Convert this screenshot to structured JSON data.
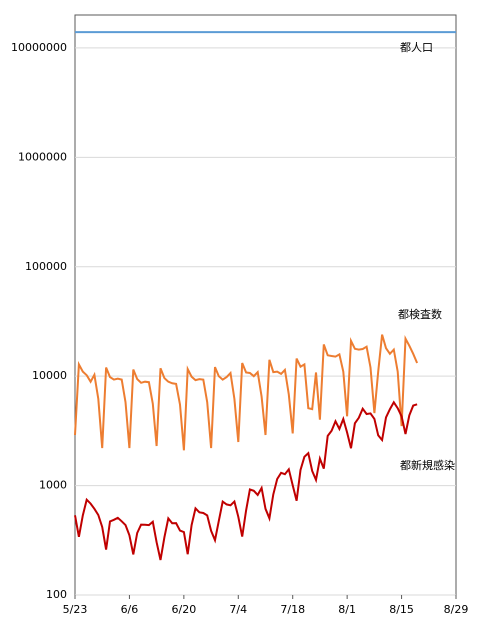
{
  "chart_data": {
    "type": "line",
    "log_y": true,
    "grid": true,
    "x": [
      "5/23",
      "5/24",
      "5/25",
      "5/26",
      "5/27",
      "5/28",
      "5/29",
      "5/30",
      "5/31",
      "6/1",
      "6/2",
      "6/3",
      "6/4",
      "6/5",
      "6/6",
      "6/7",
      "6/8",
      "6/9",
      "6/10",
      "6/11",
      "6/12",
      "6/13",
      "6/14",
      "6/15",
      "6/16",
      "6/17",
      "6/18",
      "6/19",
      "6/20",
      "6/21",
      "6/22",
      "6/23",
      "6/24",
      "6/25",
      "6/26",
      "6/27",
      "6/28",
      "6/29",
      "6/30",
      "7/1",
      "7/2",
      "7/3",
      "7/4",
      "7/5",
      "7/6",
      "7/7",
      "7/8",
      "7/9",
      "7/10",
      "7/11",
      "7/12",
      "7/13",
      "7/14",
      "7/15",
      "7/16",
      "7/17",
      "7/18",
      "7/19",
      "7/20",
      "7/21",
      "7/22",
      "7/23",
      "7/24",
      "7/25",
      "7/26",
      "7/27",
      "7/28",
      "7/29",
      "7/30",
      "7/31",
      "8/1",
      "8/2",
      "8/3",
      "8/4",
      "8/5",
      "8/6",
      "8/7",
      "8/8",
      "8/9",
      "8/10",
      "8/11",
      "8/12",
      "8/13",
      "8/14",
      "8/15",
      "8/16",
      "8/17",
      "8/18",
      "8/19"
    ],
    "series": [
      {
        "name": "都検査数",
        "color": "#ed7d31",
        "values": [
          2900,
          12800,
          11000,
          10200,
          8900,
          10300,
          6200,
          2200,
          12000,
          9800,
          9300,
          9500,
          9300,
          5800,
          2200,
          11500,
          9400,
          8700,
          8900,
          8800,
          5600,
          2300,
          11800,
          9600,
          8900,
          8600,
          8500,
          5500,
          2100,
          11600,
          9900,
          9200,
          9400,
          9300,
          5800,
          2200,
          12100,
          10000,
          9300,
          9800,
          10700,
          6200,
          2500,
          13200,
          10800,
          10700,
          10000,
          10900,
          6500,
          2900,
          14100,
          10900,
          11000,
          10500,
          11400,
          6800,
          3000,
          14500,
          12200,
          12800,
          5100,
          5000,
          10800,
          4000,
          19500,
          15500,
          15300,
          15100,
          15800,
          11000,
          4300,
          21000,
          17800,
          17500,
          17700,
          18600,
          12000,
          4600,
          11000,
          24000,
          18000,
          16000,
          17500,
          11000,
          3500,
          22000,
          19000,
          16000,
          13200
        ]
      },
      {
        "name": "都新規感染",
        "color": "#c00000",
        "values": [
          535,
          340,
          533,
          743,
          684,
          614,
          539,
          418,
          260,
          471,
          487,
          508,
          472,
          436,
          351,
          235,
          369,
          440,
          439,
          435,
          467,
          304,
          209,
          337,
          501,
          452,
          453,
          388,
          376,
          236,
          435,
          619,
          570,
          562,
          534,
          386,
          317,
          476,
          714,
          673,
          660,
          716,
          518,
          342,
          593,
          920,
          896,
          822,
          950,
          614,
          502,
          830,
          1149,
          1308,
          1271,
          1410,
          1008,
          727,
          1387,
          1832,
          1979,
          1359,
          1128,
          1763,
          1429,
          2848,
          3177,
          3865,
          3300,
          4058,
          3058,
          2195,
          3709,
          4166,
          5042,
          4515,
          4566,
          4066,
          2884,
          2612,
          4200,
          4989,
          5773,
          5094,
          4295,
          2962,
          4377,
          5386,
          5534
        ]
      }
    ],
    "reference_lines": [
      {
        "name": "都人口",
        "color": "#5b9bd5",
        "value": 13960000
      }
    ],
    "xlim": [
      "5/23",
      "8/29"
    ],
    "xticks": [
      "5/23",
      "6/6",
      "6/20",
      "7/4",
      "7/18",
      "8/1",
      "8/15",
      "8/29"
    ],
    "ylim": [
      100,
      20000000
    ],
    "yticks": [
      100,
      1000,
      10000,
      100000,
      1000000,
      10000000
    ]
  }
}
